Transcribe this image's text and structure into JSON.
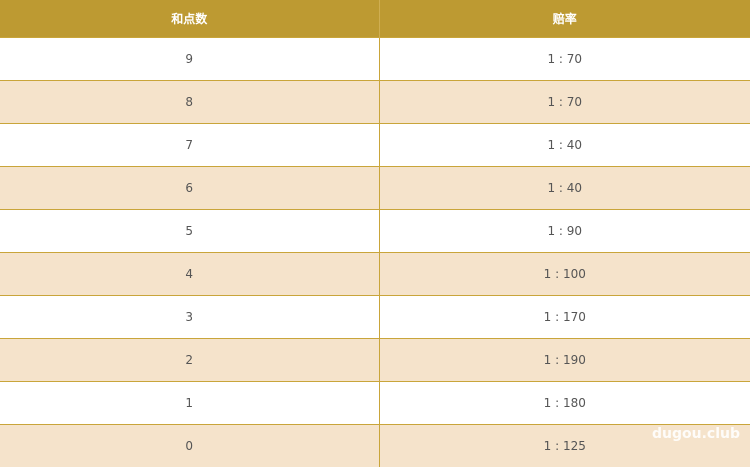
{
  "table": {
    "headers": [
      "和点数",
      "赔率"
    ],
    "rows": [
      {
        "sum": "9",
        "odds": "1 : 70"
      },
      {
        "sum": "8",
        "odds": "1 : 70"
      },
      {
        "sum": "7",
        "odds": "1 : 40"
      },
      {
        "sum": "6",
        "odds": "1 : 40"
      },
      {
        "sum": "5",
        "odds": "1 : 90"
      },
      {
        "sum": "4",
        "odds": "1 : 100"
      },
      {
        "sum": "3",
        "odds": "1 : 170"
      },
      {
        "sum": "2",
        "odds": "1 : 190"
      },
      {
        "sum": "1",
        "odds": "1 : 180"
      },
      {
        "sum": "0",
        "odds": "1 : 125"
      }
    ]
  },
  "watermark": "dugou.club",
  "colors": {
    "header": "#bd9a32",
    "alt_row": "#f5e3cb",
    "border": "#c9a53a"
  }
}
